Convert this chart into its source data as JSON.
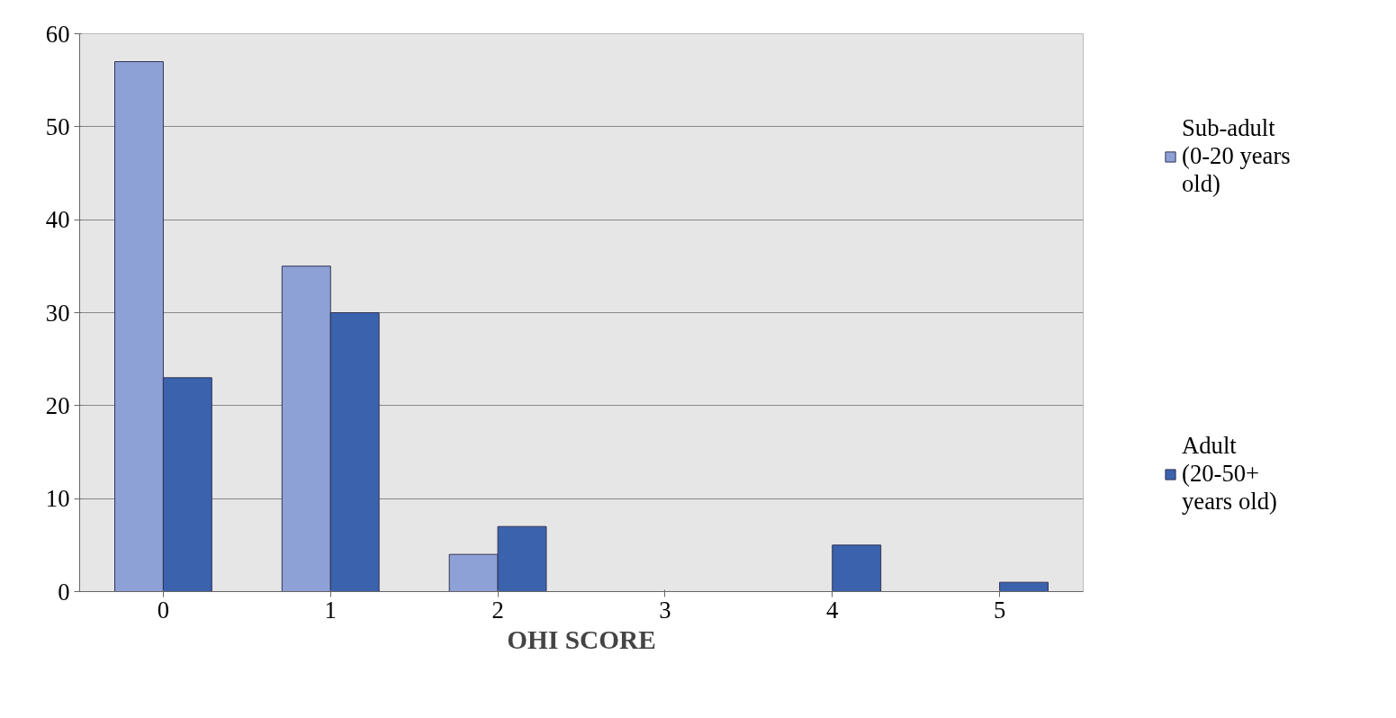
{
  "chart_data": {
    "type": "bar",
    "xlabel": "OHI SCORE",
    "categories": [
      "0",
      "1",
      "2",
      "3",
      "4",
      "5"
    ],
    "series": [
      {
        "name": "Sub-adult (0-20 years old)",
        "color": "#8ea1d6",
        "values": [
          57,
          35,
          4,
          0,
          0,
          0
        ]
      },
      {
        "name": "Adult (20-50+ years old)",
        "color": "#3a62ad",
        "values": [
          23,
          30,
          7,
          0,
          5,
          1
        ]
      }
    ],
    "ylim": [
      0,
      60
    ],
    "yticks": [
      0,
      10,
      20,
      30,
      40,
      50,
      60
    ],
    "grid": "y",
    "legend": "right"
  }
}
